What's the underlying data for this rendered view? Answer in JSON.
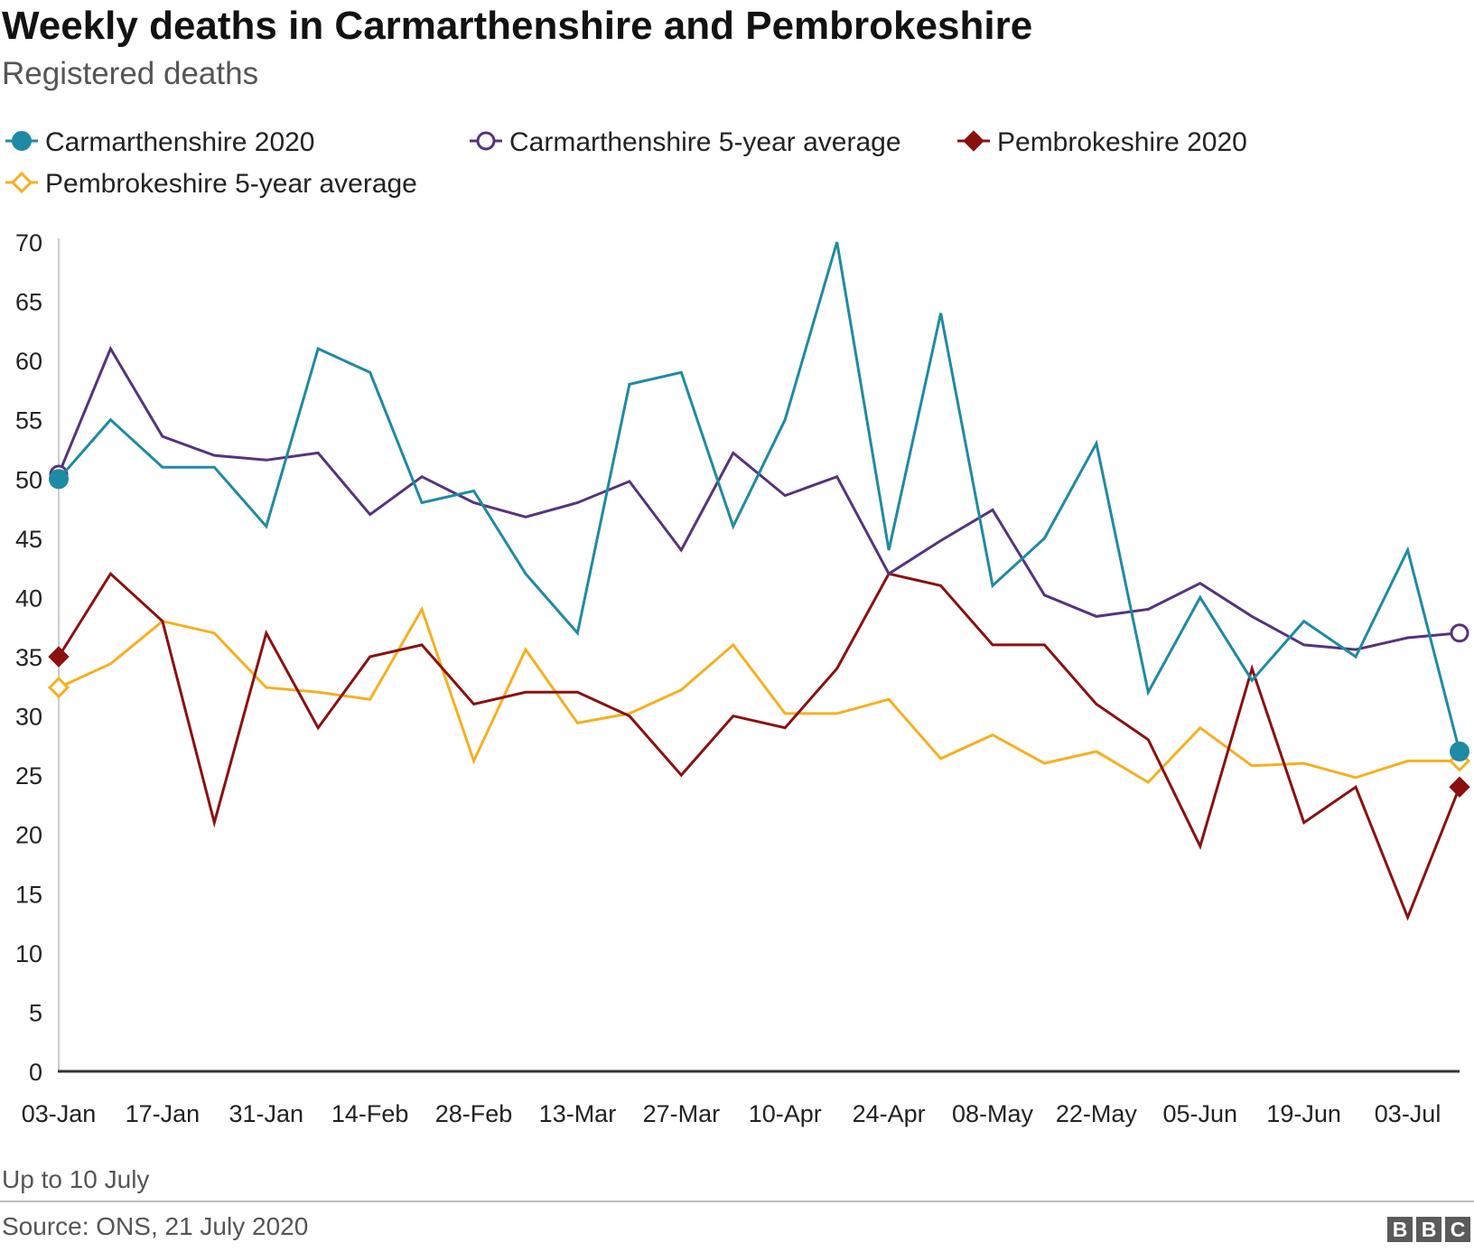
{
  "chart_data": {
    "type": "line",
    "title": "Weekly deaths in Carmarthenshire and Pembrokeshire",
    "subtitle": "Registered deaths",
    "xlabel": "",
    "ylabel": "",
    "ylim": [
      0,
      70
    ],
    "yticks": [
      "0",
      "5",
      "10",
      "15",
      "20",
      "25",
      "30",
      "35",
      "40",
      "45",
      "50",
      "55",
      "60",
      "65",
      "70"
    ],
    "x": [
      "03-Jan",
      "10-Jan",
      "17-Jan",
      "24-Jan",
      "31-Jan",
      "07-Feb",
      "14-Feb",
      "21-Feb",
      "28-Feb",
      "06-Mar",
      "13-Mar",
      "20-Mar",
      "27-Mar",
      "03-Apr",
      "10-Apr",
      "17-Apr",
      "24-Apr",
      "01-May",
      "08-May",
      "15-May",
      "22-May",
      "29-May",
      "05-Jun",
      "12-Jun",
      "19-Jun",
      "26-Jun",
      "03-Jul",
      "10-Jul"
    ],
    "x_tick_labels": [
      "03-Jan",
      "17-Jan",
      "31-Jan",
      "14-Feb",
      "28-Feb",
      "13-Mar",
      "27-Mar",
      "10-Apr",
      "24-Apr",
      "08-May",
      "22-May",
      "05-Jun",
      "19-Jun",
      "03-Jul"
    ],
    "series": [
      {
        "name": "Carmarthenshire 2020",
        "color": "#1f8aa3",
        "marker": "circle-filled",
        "values": [
          50,
          55,
          51,
          51,
          46,
          61,
          59,
          48,
          49,
          42,
          37,
          58,
          59,
          46,
          55,
          70,
          44,
          64,
          41,
          45,
          53,
          32,
          40,
          33,
          38,
          35,
          44,
          27
        ]
      },
      {
        "name": "Carmarthenshire 5-year average",
        "color": "#56337d",
        "marker": "circle-open",
        "values": [
          50.4,
          61,
          53.6,
          52,
          51.6,
          52.2,
          47,
          50.2,
          48,
          46.8,
          48,
          49.8,
          44,
          52.2,
          48.6,
          50.2,
          42,
          44.8,
          47.4,
          40.2,
          38.4,
          39,
          41.2,
          38.4,
          36,
          35.6,
          36.6,
          37
        ]
      },
      {
        "name": "Pembrokeshire 2020",
        "color": "#8b1010",
        "marker": "diamond-filled",
        "values": [
          35,
          42,
          38,
          21,
          37,
          29,
          35,
          36,
          31,
          32,
          32,
          30,
          25,
          30,
          29,
          34,
          42,
          41,
          36,
          36,
          31,
          28,
          19,
          34,
          21,
          24,
          13,
          24
        ]
      },
      {
        "name": "Pembrokeshire 5-year average",
        "color": "#f5b021",
        "marker": "diamond-open",
        "values": [
          32.4,
          34.4,
          38,
          37,
          32.4,
          32,
          31.4,
          39,
          26.2,
          35.6,
          29.4,
          30.2,
          32.2,
          36,
          30.2,
          30.2,
          31.4,
          26.4,
          28.4,
          26,
          27,
          24.4,
          29,
          25.8,
          26,
          24.8,
          26.2,
          26.2
        ]
      }
    ],
    "legend_position": "top-left",
    "footnote": "Up to 10 July",
    "source": "Source: ONS, 21 July 2020"
  },
  "logo": {
    "letters": [
      "B",
      "B",
      "C"
    ]
  }
}
